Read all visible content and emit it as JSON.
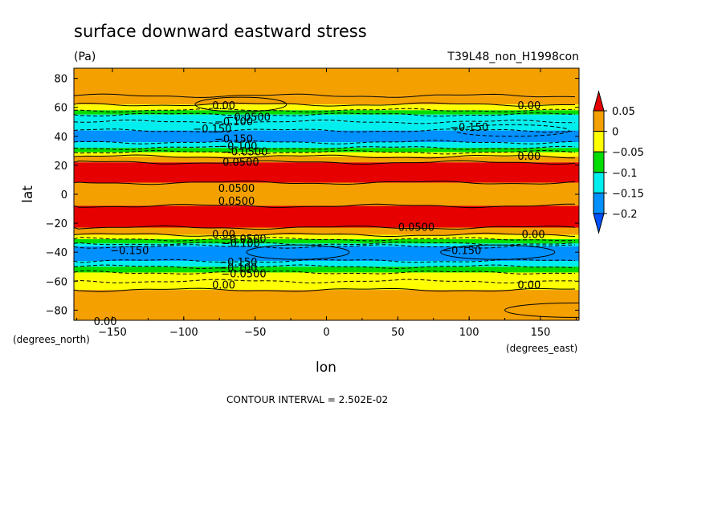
{
  "chart_data": {
    "type": "heatmap",
    "title": "surface downward eastward stress",
    "units": "(Pa)",
    "dataset": "T39L48_non_H1998con",
    "xlabel": "lon",
    "ylabel": "lat",
    "x_units": "(degrees_east)",
    "y_units": "(degrees_north)",
    "xlim": [
      -177,
      177
    ],
    "ylim": [
      -87,
      87
    ],
    "xticks": [
      -150,
      -100,
      -50,
      0,
      50,
      100,
      150
    ],
    "yticks": [
      -80,
      -60,
      -40,
      -20,
      0,
      20,
      40,
      60,
      80
    ],
    "xtick_labels": [
      "−150",
      "−100",
      "−50",
      "0",
      "50",
      "100",
      "150"
    ],
    "ytick_labels": [
      "−80",
      "−60",
      "−40",
      "−20",
      "0",
      "20",
      "40",
      "60",
      "80"
    ],
    "contour_interval_text": "CONTOUR INTERVAL = 2.502E-02",
    "colorbar": {
      "labels": [
        "0.05",
        "0",
        "−0.05",
        "−0.1",
        "−0.15",
        "−0.2"
      ],
      "colors": [
        "#e60000",
        "#f4a000",
        "#ffff00",
        "#00dd00",
        "#00eeee",
        "#0090ff",
        "#0050ff"
      ]
    },
    "zonal_profile": [
      {
        "lat_min": 68,
        "lat_max": 87,
        "value": 0.0
      },
      {
        "lat_min": 62,
        "lat_max": 68,
        "value": 0.01
      },
      {
        "lat_min": 58,
        "lat_max": 62,
        "value": -0.04
      },
      {
        "lat_min": 55,
        "lat_max": 58,
        "value": -0.08
      },
      {
        "lat_min": 50,
        "lat_max": 55,
        "value": -0.12
      },
      {
        "lat_min": 44,
        "lat_max": 50,
        "value": -0.14
      },
      {
        "lat_min": 36,
        "lat_max": 44,
        "value": -0.17
      },
      {
        "lat_min": 32,
        "lat_max": 36,
        "value": -0.12
      },
      {
        "lat_min": 29,
        "lat_max": 32,
        "value": -0.08
      },
      {
        "lat_min": 26,
        "lat_max": 29,
        "value": -0.03
      },
      {
        "lat_min": 22,
        "lat_max": 26,
        "value": 0.02
      },
      {
        "lat_min": 8,
        "lat_max": 22,
        "value": 0.07
      },
      {
        "lat_min": -8,
        "lat_max": 8,
        "value": 0.02
      },
      {
        "lat_min": -23,
        "lat_max": -8,
        "value": 0.07
      },
      {
        "lat_min": -28,
        "lat_max": -23,
        "value": 0.02
      },
      {
        "lat_min": -31,
        "lat_max": -28,
        "value": -0.03
      },
      {
        "lat_min": -34,
        "lat_max": -31,
        "value": -0.08
      },
      {
        "lat_min": -36,
        "lat_max": -34,
        "value": -0.12
      },
      {
        "lat_min": -46,
        "lat_max": -36,
        "value": -0.17
      },
      {
        "lat_min": -50,
        "lat_max": -46,
        "value": -0.12
      },
      {
        "lat_min": -54,
        "lat_max": -50,
        "value": -0.08
      },
      {
        "lat_min": -60,
        "lat_max": -54,
        "value": -0.04
      },
      {
        "lat_min": -66,
        "lat_max": -60,
        "value": -0.02
      },
      {
        "lat_min": -87,
        "lat_max": -66,
        "value": 0.0
      }
    ],
    "contour_labels": [
      {
        "text": "0.00",
        "lon": -72,
        "lat": 61
      },
      {
        "text": "−0.0500",
        "lon": -55,
        "lat": 53
      },
      {
        "text": "−0.100",
        "lon": -65,
        "lat": 50
      },
      {
        "text": "−0.150",
        "lon": -80,
        "lat": 45
      },
      {
        "text": "−0.150",
        "lon": -65,
        "lat": 38
      },
      {
        "text": "−0.100",
        "lon": -62,
        "lat": 33
      },
      {
        "text": "−0.0500",
        "lon": -57,
        "lat": 29
      },
      {
        "text": "0.0500",
        "lon": -60,
        "lat": 22
      },
      {
        "text": "−0.150",
        "lon": 100,
        "lat": 46
      },
      {
        "text": "0.00",
        "lon": 142,
        "lat": 61
      },
      {
        "text": "0.00",
        "lon": 142,
        "lat": 26
      },
      {
        "text": "0.0500",
        "lon": -63,
        "lat": 4
      },
      {
        "text": "0.0500",
        "lon": -63,
        "lat": -5
      },
      {
        "text": "0.0500",
        "lon": 63,
        "lat": -23
      },
      {
        "text": "0.00",
        "lon": -72,
        "lat": -28
      },
      {
        "text": "−0.0500",
        "lon": -58,
        "lat": -31
      },
      {
        "text": "−0.100",
        "lon": -60,
        "lat": -34
      },
      {
        "text": "−0.150",
        "lon": -138,
        "lat": -39
      },
      {
        "text": "−0.150",
        "lon": 95,
        "lat": -39
      },
      {
        "text": "0.00",
        "lon": 145,
        "lat": -28
      },
      {
        "text": "−0.150",
        "lon": -62,
        "lat": -47
      },
      {
        "text": "−0.100",
        "lon": -62,
        "lat": -51
      },
      {
        "text": "−0.0500",
        "lon": -58,
        "lat": -55
      },
      {
        "text": "0.00",
        "lon": -72,
        "lat": -63
      },
      {
        "text": "0.00",
        "lon": 142,
        "lat": -63
      },
      {
        "text": "0.00",
        "lon": -155,
        "lat": -88
      }
    ]
  }
}
